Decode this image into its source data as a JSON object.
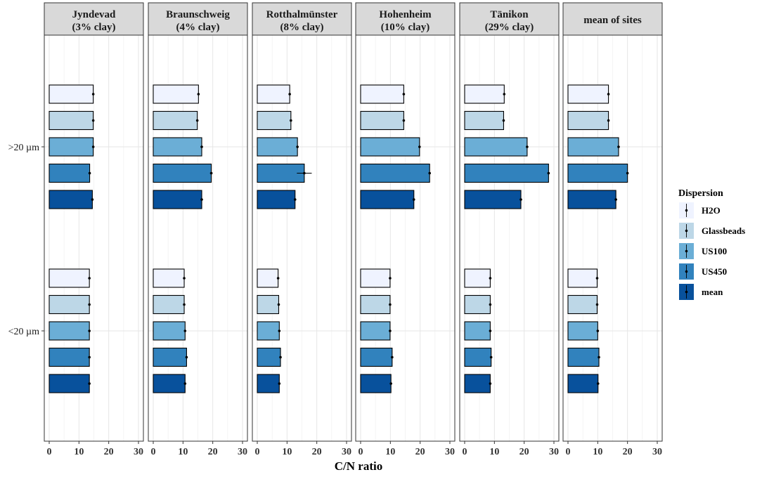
{
  "chart_data": {
    "type": "bar",
    "orientation": "horizontal",
    "title": "",
    "xlabel": "C/N ratio",
    "ylabel": "",
    "xlim": [
      0,
      30
    ],
    "xticks": [
      0,
      10,
      20,
      30
    ],
    "grid": true,
    "legend_position": "right",
    "legend_title": "Dispersion",
    "groups": [
      ">20 µm",
      "<20 µm"
    ],
    "series": [
      {
        "name": "H2O",
        "color": "#eff3ff"
      },
      {
        "name": "Glassbeads",
        "color": "#bdd7e7"
      },
      {
        "name": "US100",
        "color": "#6baed6"
      },
      {
        "name": "US450",
        "color": "#3182bd"
      },
      {
        "name": "mean",
        "color": "#08519c"
      }
    ],
    "panels": [
      {
        "name": "Jyndevad",
        "label_line1": "Jyndevad",
        "label_line2": "(3% clay)",
        "values": {
          ">20 µm": [
            14.8,
            14.8,
            14.8,
            13.6,
            14.5
          ],
          "<20 µm": [
            13.5,
            13.5,
            13.5,
            13.5,
            13.5
          ]
        },
        "errors": {
          ">20 µm": [
            0.3,
            0.3,
            0.3,
            0.3,
            0.3
          ],
          "<20 µm": [
            0.2,
            0.2,
            0.2,
            0.2,
            0.2
          ]
        }
      },
      {
        "name": "Braunschweig",
        "label_line1": "Braunschweig",
        "label_line2": "(4% clay)",
        "values": {
          ">20 µm": [
            15.2,
            14.8,
            16.3,
            19.5,
            16.3
          ],
          "<20 µm": [
            10.4,
            10.4,
            10.7,
            11.2,
            10.7
          ]
        },
        "errors": {
          ">20 µm": [
            0.4,
            0.4,
            0.4,
            0.4,
            0.4
          ],
          "<20 µm": [
            0.2,
            0.2,
            0.2,
            0.2,
            0.2
          ]
        }
      },
      {
        "name": "Rotthalmünster",
        "label_line1": "Rotthalmünster",
        "label_line2": "(8% clay)",
        "values": {
          ">20 µm": [
            10.9,
            11.3,
            13.5,
            15.8,
            12.7
          ],
          "<20 µm": [
            7.0,
            7.2,
            7.4,
            7.8,
            7.4
          ]
        },
        "errors": {
          ">20 µm": [
            0.3,
            0.3,
            0.4,
            2.5,
            0.4
          ],
          "<20 µm": [
            0.2,
            0.2,
            0.2,
            0.2,
            0.2
          ]
        }
      },
      {
        "name": "Hohenheim",
        "label_line1": "Hohenheim",
        "label_line2": "(10% clay)",
        "values": {
          ">20 µm": [
            14.5,
            14.5,
            19.8,
            23.2,
            17.9
          ],
          "<20 µm": [
            9.9,
            9.9,
            9.9,
            10.6,
            10.2
          ]
        },
        "errors": {
          ">20 µm": [
            0.3,
            0.3,
            0.4,
            0.4,
            0.4
          ],
          "<20 µm": [
            0.2,
            0.2,
            0.2,
            0.2,
            0.2
          ]
        }
      },
      {
        "name": "Tänikon",
        "label_line1": "Tänikon",
        "label_line2": "(29% clay)",
        "values": {
          ">20 µm": [
            13.3,
            13.1,
            21.0,
            28.2,
            18.9
          ],
          "<20 µm": [
            8.6,
            8.6,
            8.6,
            8.9,
            8.6
          ]
        },
        "errors": {
          ">20 µm": [
            0.3,
            0.3,
            0.4,
            0.4,
            0.4
          ],
          "<20 µm": [
            0.2,
            0.2,
            0.2,
            0.2,
            0.2
          ]
        }
      },
      {
        "name": "mean of sites",
        "label_line1": "mean of sites",
        "label_line2": "",
        "values": {
          ">20 µm": [
            13.6,
            13.6,
            17.0,
            20.0,
            16.1
          ],
          "<20 µm": [
            9.8,
            9.8,
            10.0,
            10.4,
            10.1
          ]
        },
        "errors": {
          ">20 µm": [
            0.3,
            0.3,
            0.4,
            0.4,
            0.4
          ],
          "<20 µm": [
            0.2,
            0.2,
            0.2,
            0.2,
            0.2
          ]
        }
      }
    ]
  }
}
